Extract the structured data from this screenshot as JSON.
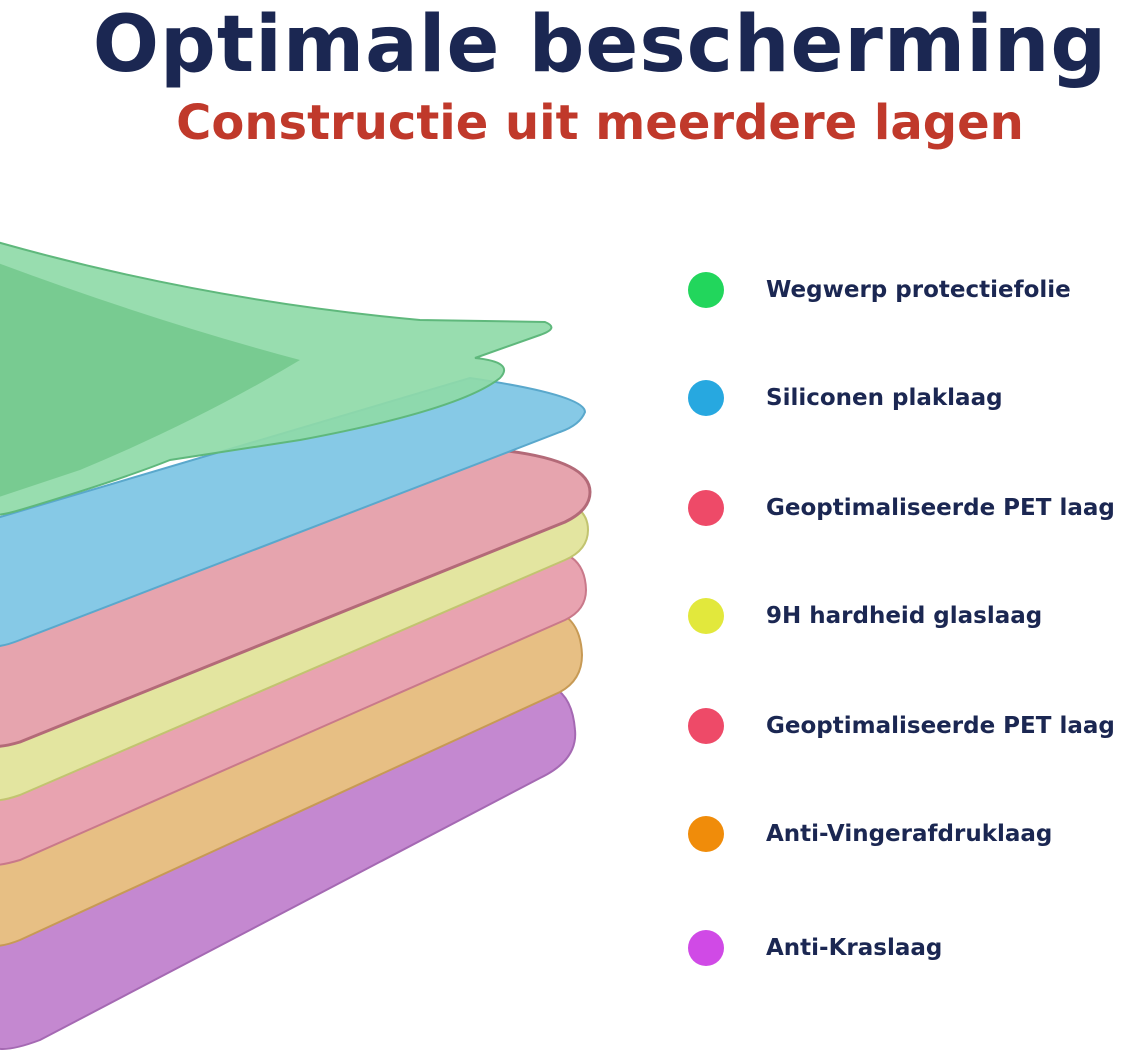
{
  "header": {
    "title": "Optimale bescherming",
    "subtitle": "Constructie uit meerdere lagen"
  },
  "colors": {
    "title": "#1b2752",
    "subtitle": "#c0392b"
  },
  "legend": [
    {
      "label": "Wegwerp protectiefolie",
      "color": "#22d65c"
    },
    {
      "label": "Siliconen plaklaag",
      "color": "#27a8e0"
    },
    {
      "label": "Geoptimaliseerde PET laag",
      "color": "#ee4a68"
    },
    {
      "label": "9H hardheid glaslaag",
      "color": "#e2e83c"
    },
    {
      "label": "Geoptimaliseerde PET laag",
      "color": "#ee4a68"
    },
    {
      "label": "Anti-Vingerafdruklaag",
      "color": "#f08c0a"
    },
    {
      "label": "Anti-Kraslaag",
      "color": "#d04ae6"
    }
  ]
}
